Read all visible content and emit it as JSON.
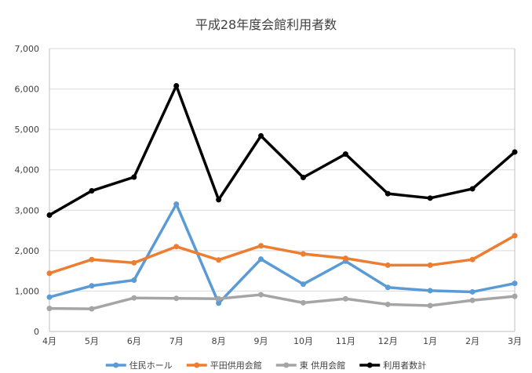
{
  "chart_data": {
    "type": "line",
    "title": "平成28年度会館利用者数",
    "xlabel": "",
    "ylabel": "",
    "categories": [
      "4月",
      "5月",
      "6月",
      "7月",
      "8月",
      "9月",
      "10月",
      "11月",
      "12月",
      "1月",
      "2月",
      "3月"
    ],
    "ylim": [
      0,
      7000
    ],
    "yticks": [
      0,
      1000,
      2000,
      3000,
      4000,
      5000,
      6000,
      7000
    ],
    "ytick_labels": [
      "0",
      "1,000",
      "2,000",
      "3,000",
      "4,000",
      "5,000",
      "6,000",
      "7,000"
    ],
    "grid": true,
    "legend_position": "bottom",
    "series": [
      {
        "name": "住民ホール",
        "color": "#5B9BD5",
        "values": [
          850,
          1130,
          1270,
          3150,
          700,
          1790,
          1170,
          1740,
          1090,
          1010,
          980,
          1190
        ]
      },
      {
        "name": "平田供用会館",
        "color": "#ED7D31",
        "values": [
          1440,
          1780,
          1700,
          2100,
          1770,
          2120,
          1920,
          1810,
          1640,
          1640,
          1780,
          2370
        ]
      },
      {
        "name": "東 供用会館",
        "color": "#A5A5A5",
        "values": [
          570,
          560,
          830,
          820,
          810,
          910,
          710,
          810,
          670,
          640,
          770,
          870
        ]
      },
      {
        "name": "利用者数計",
        "color": "#000000",
        "values": [
          2880,
          3480,
          3820,
          6080,
          3260,
          4840,
          3810,
          4390,
          3410,
          3300,
          3530,
          4440
        ]
      }
    ]
  }
}
